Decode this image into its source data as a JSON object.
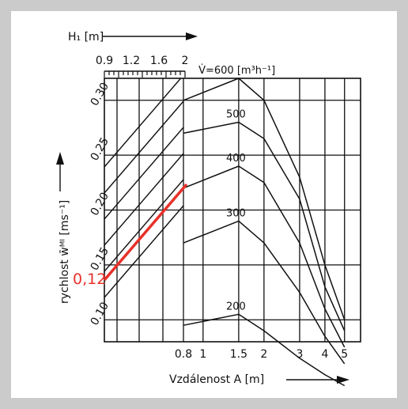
{
  "chart_data": {
    "type": "line",
    "top_axis": {
      "label": "H₁ [m]",
      "ticks": [
        "0.9",
        "1.2",
        "1.6",
        "2"
      ]
    },
    "left_axis": {
      "label": "rychlost  w̄ᴹᴵ [ms⁻¹]",
      "ticks": [
        "0.10",
        "0.15",
        "0.20",
        "0.25",
        "0.30"
      ]
    },
    "bottom_axis": {
      "label": "Vzdálenost  A [m]",
      "ticks": [
        "0.8",
        "1",
        "1.5",
        "2",
        "3",
        "4",
        "5"
      ]
    },
    "series": [
      {
        "name": "V̇=600  [m³h⁻¹]",
        "label_text": "V̇=600  [m³h⁻¹]",
        "x": [
          0.8,
          1.5,
          2,
          3,
          4,
          5
        ],
        "y": [
          0.3,
          0.32,
          0.3,
          0.23,
          0.15,
          0.1
        ]
      },
      {
        "name": "500",
        "label_text": "500",
        "x": [
          0.8,
          1.5,
          2,
          3,
          4,
          5
        ],
        "y": [
          0.27,
          0.28,
          0.265,
          0.21,
          0.13,
          0.09
        ]
      },
      {
        "name": "400",
        "label_text": "400",
        "x": [
          0.8,
          1.5,
          2,
          3,
          4,
          5
        ],
        "y": [
          0.22,
          0.24,
          0.225,
          0.17,
          0.11,
          0.075
        ]
      },
      {
        "name": "300",
        "label_text": "300",
        "x": [
          0.8,
          1.5,
          2,
          3,
          4,
          5
        ],
        "y": [
          0.17,
          0.19,
          0.17,
          0.125,
          0.085,
          0.06
        ]
      },
      {
        "name": "200",
        "label_text": "200",
        "x": [
          0.8,
          1.5,
          2,
          3,
          4,
          5
        ],
        "y": [
          0.095,
          0.105,
          0.09,
          0.065,
          0.05,
          0.04
        ]
      }
    ],
    "highlight": {
      "label": "0,12",
      "color": "#e8302a"
    },
    "grid": true
  }
}
